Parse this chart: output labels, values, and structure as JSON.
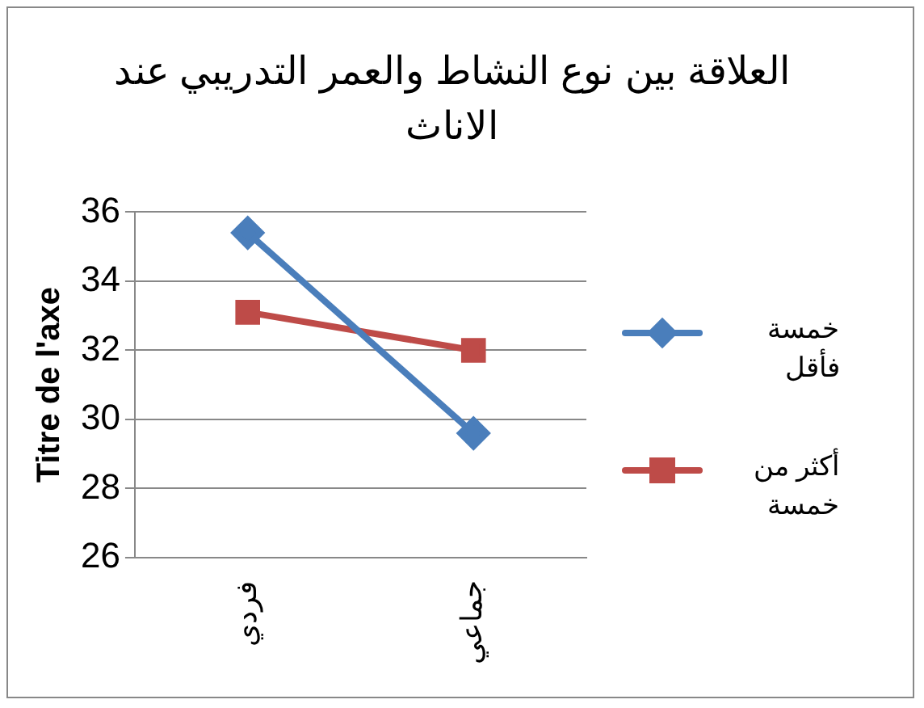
{
  "chart_data": {
    "type": "line",
    "title": "العلاقة بين نوع النشاط والعمر التدريبي عند الاناث",
    "ylabel": "Titre de l'axe",
    "categories": [
      "فردي",
      "جماعي"
    ],
    "series": [
      {
        "name": "خمسة فأقل",
        "color": "#4a7ebb",
        "values": [
          35.4,
          29.6
        ],
        "marker": "diamond"
      },
      {
        "name": "أكثر من خمسة",
        "color": "#be4b48",
        "values": [
          33.1,
          32.0
        ],
        "marker": "square"
      }
    ],
    "ylim": [
      26,
      36
    ],
    "yticks": [
      26,
      28,
      30,
      32,
      34,
      36
    ],
    "grid": "y",
    "legend": "right"
  }
}
